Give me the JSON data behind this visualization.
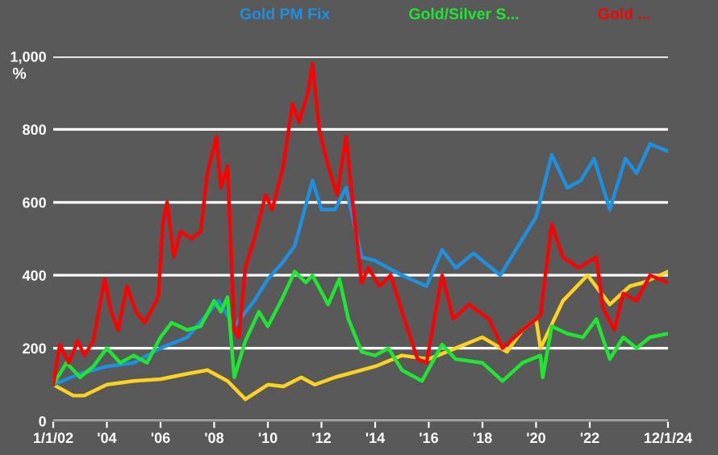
{
  "chart_data": {
    "type": "line",
    "ylabel": "%",
    "legend": "top",
    "grid": "y",
    "xlim": [
      "2002-01-01",
      "2024-12-01"
    ],
    "xticks": [
      {
        "value": "2002-01-01",
        "label": "1/1/02"
      },
      {
        "value": "2004-01-01",
        "label": "'04"
      },
      {
        "value": "2006-01-01",
        "label": "'06"
      },
      {
        "value": "2008-01-01",
        "label": "'08"
      },
      {
        "value": "2010-01-01",
        "label": "'10"
      },
      {
        "value": "2012-01-01",
        "label": "'12"
      },
      {
        "value": "2014-01-01",
        "label": "'14"
      },
      {
        "value": "2016-01-01",
        "label": "'16"
      },
      {
        "value": "2018-01-01",
        "label": "'18"
      },
      {
        "value": "2020-01-01",
        "label": "'20"
      },
      {
        "value": "2022-01-01",
        "label": "'22"
      },
      {
        "value": "2024-12-01",
        "label": "12/1/24"
      }
    ],
    "ylim": [
      0,
      1000
    ],
    "yticks": [
      0,
      200,
      400,
      600,
      800,
      {
        "value": 1000,
        "label": "1,000"
      }
    ],
    "series": [
      {
        "color": "#ffd320",
        "x": [
          "2002-01",
          "2002-10",
          "2003-03",
          "2004-01",
          "2005-01",
          "2006-01",
          "2007-01",
          "2007-10",
          "2008-07",
          "2009-03",
          "2010-01",
          "2010-08",
          "2011-04",
          "2011-10",
          "2012-07",
          "2013-01",
          "2014-01",
          "2015-01",
          "2016-01",
          "2017-01",
          "2018-01",
          "2018-12",
          "2019-07",
          "2020-01",
          "2020-03",
          "2021-01",
          "2021-12",
          "2022-10",
          "2023-07",
          "2024-01",
          "2024-12"
        ],
        "values": [
          100,
          70,
          70,
          100,
          110,
          115,
          130,
          140,
          110,
          60,
          100,
          95,
          120,
          100,
          120,
          130,
          150,
          180,
          170,
          200,
          230,
          190,
          250,
          280,
          200,
          330,
          400,
          320,
          370,
          380,
          410
        ]
      },
      {
        "name": "Gold PM Fix",
        "color": "#1e90e0",
        "x": [
          "2002-01",
          "2003-01",
          "2004-01",
          "2005-01",
          "2006-01",
          "2007-01",
          "2008-03",
          "2008-10",
          "2009-07",
          "2010-01",
          "2010-07",
          "2011-01",
          "2011-09",
          "2012-01",
          "2012-07",
          "2012-12",
          "2013-07",
          "2014-01",
          "2015-01",
          "2015-12",
          "2016-07",
          "2017-01",
          "2017-09",
          "2018-09",
          "2019-07",
          "2020-01",
          "2020-08",
          "2021-03",
          "2021-09",
          "2022-03",
          "2022-10",
          "2023-05",
          "2023-10",
          "2024-04",
          "2024-12"
        ],
        "values": [
          100,
          130,
          150,
          160,
          200,
          230,
          330,
          260,
          330,
          390,
          430,
          480,
          660,
          580,
          580,
          640,
          450,
          440,
          400,
          370,
          470,
          420,
          460,
          400,
          500,
          560,
          730,
          640,
          660,
          720,
          580,
          720,
          680,
          760,
          740
        ]
      },
      {
        "name": "Gold/Silver S...",
        "color": "#1ee632",
        "x": [
          "2002-01",
          "2002-07",
          "2003-01",
          "2003-07",
          "2004-01",
          "2004-07",
          "2005-01",
          "2005-07",
          "2006-01",
          "2006-06",
          "2007-01",
          "2007-07",
          "2008-01",
          "2008-04",
          "2008-07",
          "2008-10",
          "2009-03",
          "2009-09",
          "2010-01",
          "2010-07",
          "2011-01",
          "2011-06",
          "2011-09",
          "2012-04",
          "2012-09",
          "2013-01",
          "2013-07",
          "2014-01",
          "2014-07",
          "2015-01",
          "2015-10",
          "2016-07",
          "2017-01",
          "2018-01",
          "2018-10",
          "2019-07",
          "2020-03",
          "2020-04",
          "2020-08",
          "2021-03",
          "2021-10",
          "2022-04",
          "2022-10",
          "2023-04",
          "2023-10",
          "2024-04",
          "2024-12"
        ],
        "values": [
          100,
          160,
          120,
          150,
          200,
          160,
          180,
          160,
          230,
          270,
          250,
          260,
          330,
          300,
          340,
          120,
          220,
          300,
          260,
          330,
          410,
          380,
          400,
          320,
          390,
          280,
          190,
          180,
          200,
          140,
          110,
          210,
          170,
          160,
          110,
          160,
          180,
          120,
          260,
          240,
          230,
          280,
          170,
          230,
          200,
          230,
          240
        ]
      },
      {
        "name": "Gold ...",
        "color": "#ff0000",
        "x": [
          "2002-01",
          "2002-04",
          "2002-08",
          "2002-12",
          "2003-03",
          "2003-07",
          "2003-12",
          "2004-03",
          "2004-06",
          "2004-10",
          "2005-02",
          "2005-06",
          "2005-12",
          "2006-02",
          "2006-04",
          "2006-07",
          "2006-10",
          "2007-03",
          "2007-07",
          "2007-10",
          "2008-02",
          "2008-04",
          "2008-07",
          "2008-10",
          "2008-12",
          "2009-03",
          "2009-07",
          "2009-12",
          "2010-03",
          "2010-08",
          "2010-12",
          "2011-03",
          "2011-07",
          "2011-09",
          "2011-12",
          "2012-04",
          "2012-08",
          "2012-12",
          "2013-03",
          "2013-07",
          "2013-10",
          "2014-03",
          "2014-08",
          "2015-01",
          "2015-08",
          "2015-12",
          "2016-07",
          "2016-12",
          "2017-07",
          "2018-04",
          "2018-10",
          "2019-07",
          "2020-03",
          "2020-08",
          "2021-01",
          "2021-08",
          "2022-04",
          "2022-07",
          "2022-12",
          "2023-04",
          "2023-10",
          "2024-04",
          "2024-12"
        ],
        "values": [
          100,
          210,
          160,
          220,
          180,
          220,
          390,
          300,
          250,
          370,
          300,
          270,
          340,
          540,
          600,
          450,
          520,
          500,
          520,
          680,
          780,
          640,
          700,
          250,
          230,
          420,
          500,
          620,
          580,
          700,
          870,
          820,
          900,
          980,
          800,
          700,
          620,
          780,
          600,
          380,
          420,
          370,
          400,
          300,
          170,
          160,
          400,
          280,
          320,
          280,
          200,
          250,
          290,
          540,
          450,
          420,
          450,
          310,
          250,
          350,
          330,
          400,
          380
        ]
      }
    ]
  }
}
